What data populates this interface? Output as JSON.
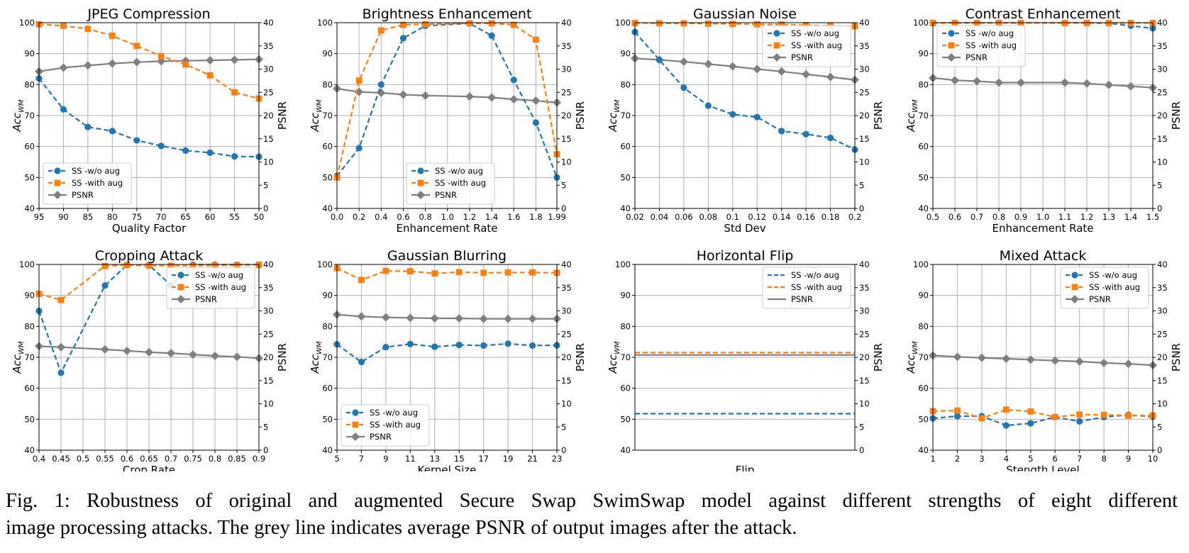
{
  "caption": {
    "line1": "Fig. 1: Robustness of original and augmented Secure Swap SwimSwap model against different strengths of eight different",
    "line2": "image processing attacks. The grey line indicates average PSNR of output images after the attack."
  },
  "legend": {
    "without_aug": "SS -w/o aug",
    "with_aug": "SS -with aug",
    "psnr": "PSNR"
  },
  "axis_labels": {
    "left_main": "Acc",
    "left_sub": "WM",
    "right": "PSNR"
  },
  "colors": {
    "without_aug": "#1f77b4",
    "with_aug": "#ff7f0e",
    "psnr": "#7f7f7f"
  },
  "chart_data": [
    {
      "type": "line",
      "title": "JPEG Compression",
      "xlabel": "Quality Factor",
      "x": [
        95,
        90,
        85,
        80,
        75,
        70,
        65,
        60,
        55,
        50
      ],
      "x_ticks": [
        "95",
        "90",
        "85",
        "80",
        "75",
        "70",
        "65",
        "60",
        "55",
        "50"
      ],
      "x_reversed": true,
      "ylim_left": [
        40,
        100
      ],
      "ylim_right": [
        0,
        40
      ],
      "y_ticks_left": [
        "40",
        "50",
        "60",
        "70",
        "80",
        "90",
        "100"
      ],
      "y_ticks_right": [
        "0",
        "5",
        "10",
        "15",
        "20",
        "25",
        "30",
        "35",
        "40"
      ],
      "legend_position": "lower-left",
      "grid": true,
      "series": [
        {
          "key": "without_aug",
          "marker": "circle",
          "dashed": true,
          "axis": "left",
          "values": [
            82,
            72,
            66.3,
            65,
            62,
            60.2,
            58.7,
            58,
            56.8,
            56.7
          ]
        },
        {
          "key": "with_aug",
          "marker": "square",
          "dashed": true,
          "axis": "left",
          "values": [
            99.5,
            99,
            98,
            95.8,
            92.5,
            89.2,
            86.5,
            83,
            77.5,
            75.5
          ]
        },
        {
          "key": "psnr",
          "marker": "diamond",
          "dashed": false,
          "axis": "right",
          "values": [
            29.5,
            30.3,
            30.8,
            31.2,
            31.5,
            31.7,
            31.8,
            31.9,
            32,
            32.1
          ]
        }
      ]
    },
    {
      "type": "line",
      "title": "Brightness Enhancement",
      "xlabel": "Enhancement Rate",
      "x": [
        0,
        0.2,
        0.4,
        0.6,
        0.8,
        1.2,
        1.4,
        1.6,
        1.8,
        1.99
      ],
      "x_ticks": [
        "0.0",
        "0.2",
        "0.4",
        "0.6",
        "0.8",
        "1.0",
        "1.2",
        "1.4",
        "1.6",
        "1.8",
        "1.99"
      ],
      "x_tick_values": [
        0,
        0.2,
        0.4,
        0.6,
        0.8,
        1.0,
        1.2,
        1.4,
        1.6,
        1.8,
        1.99
      ],
      "x_reversed": false,
      "ylim_left": [
        40,
        100
      ],
      "ylim_right": [
        0,
        40
      ],
      "y_ticks_left": [
        "40",
        "50",
        "60",
        "70",
        "80",
        "90",
        "100"
      ],
      "y_ticks_right": [
        "0",
        "5",
        "10",
        "15",
        "20",
        "25",
        "30",
        "35",
        "40"
      ],
      "legend_position": "lower-center",
      "grid": true,
      "series": [
        {
          "key": "without_aug",
          "marker": "circle",
          "dashed": true,
          "axis": "left",
          "values": [
            50.5,
            59.5,
            80,
            95,
            99,
            99.8,
            95.8,
            81.5,
            67.7,
            50
          ]
        },
        {
          "key": "with_aug",
          "marker": "square",
          "dashed": true,
          "axis": "left",
          "values": [
            50,
            81.3,
            97.5,
            99.3,
            99.5,
            99.8,
            99.8,
            99.3,
            94.5,
            57.5
          ]
        },
        {
          "key": "psnr",
          "marker": "diamond",
          "dashed": false,
          "axis": "right",
          "values": [
            25.8,
            25.1,
            24.9,
            24.5,
            24.3,
            24.1,
            23.9,
            23.5,
            23.2,
            22.8
          ]
        }
      ]
    },
    {
      "type": "line",
      "title": "Gaussian Noise",
      "xlabel": "Std Dev",
      "x": [
        0.02,
        0.04,
        0.06,
        0.08,
        0.1,
        0.12,
        0.14,
        0.16,
        0.18,
        0.2
      ],
      "x_ticks": [
        "0.02",
        "0.04",
        "0.06",
        "0.08",
        "0.1",
        "0.12",
        "0.14",
        "0.16",
        "0.18",
        "0.2"
      ],
      "x_reversed": false,
      "ylim_left": [
        40,
        100
      ],
      "ylim_right": [
        0,
        40
      ],
      "y_ticks_left": [
        "40",
        "50",
        "60",
        "70",
        "80",
        "90",
        "100"
      ],
      "y_ticks_right": [
        "0",
        "5",
        "10",
        "15",
        "20",
        "25",
        "30",
        "35",
        "40"
      ],
      "legend_position": "upper-right",
      "grid": true,
      "series": [
        {
          "key": "without_aug",
          "marker": "circle",
          "dashed": true,
          "axis": "left",
          "values": [
            97,
            88,
            79,
            73.2,
            70.4,
            69.5,
            65,
            64,
            62.8,
            59
          ]
        },
        {
          "key": "with_aug",
          "marker": "square",
          "dashed": true,
          "axis": "left",
          "values": [
            99.9,
            99.8,
            99.8,
            99.7,
            99.6,
            99.5,
            99.4,
            99.2,
            99,
            98.9
          ]
        },
        {
          "key": "psnr",
          "marker": "diamond",
          "dashed": false,
          "axis": "right",
          "values": [
            32.3,
            32,
            31.6,
            31.1,
            30.6,
            30,
            29.5,
            28.9,
            28.3,
            27.7
          ]
        }
      ]
    },
    {
      "type": "line",
      "title": "Contrast Enhancement",
      "xlabel": "Enhancement Rate",
      "x": [
        0.5,
        0.6,
        0.7,
        0.8,
        0.9,
        1.1,
        1.2,
        1.3,
        1.4,
        1.5
      ],
      "x_ticks": [
        "0.5",
        "0.6",
        "0.7",
        "0.8",
        "0.9",
        "1.0",
        "1.1",
        "1.2",
        "1.3",
        "1.4",
        "1.5"
      ],
      "x_tick_values": [
        0.5,
        0.6,
        0.7,
        0.8,
        0.9,
        1.0,
        1.1,
        1.2,
        1.3,
        1.4,
        1.5
      ],
      "x_reversed": false,
      "ylim_left": [
        40,
        100
      ],
      "ylim_right": [
        0,
        40
      ],
      "y_ticks_left": [
        "40",
        "50",
        "60",
        "70",
        "80",
        "90",
        "100"
      ],
      "y_ticks_right": [
        "0",
        "5",
        "10",
        "15",
        "20",
        "25",
        "30",
        "35",
        "40"
      ],
      "legend_position": "upper-left",
      "grid": true,
      "series": [
        {
          "key": "without_aug",
          "marker": "circle",
          "dashed": true,
          "axis": "left",
          "values": [
            99.9,
            99.9,
            99.9,
            99.9,
            99.9,
            99.9,
            99.9,
            99.8,
            99,
            98.2
          ]
        },
        {
          "key": "with_aug",
          "marker": "square",
          "dashed": true,
          "axis": "left",
          "values": [
            99.9,
            99.9,
            99.9,
            99.9,
            99.9,
            99.9,
            99.9,
            99.9,
            99.9,
            99.9
          ]
        },
        {
          "key": "psnr",
          "marker": "diamond",
          "dashed": false,
          "axis": "right",
          "values": [
            28.1,
            27.6,
            27.4,
            27.1,
            27.1,
            27.1,
            26.9,
            26.6,
            26.3,
            26
          ]
        }
      ]
    },
    {
      "type": "line",
      "title": "Cropping Attack",
      "xlabel": "Crop Rate",
      "x": [
        0.4,
        0.45,
        0.55,
        0.6,
        0.65,
        0.7,
        0.75,
        0.8,
        0.85,
        0.9
      ],
      "x_ticks": [
        "0.4",
        "0.45",
        "0.5",
        "0.55",
        "0.6",
        "0.65",
        "0.7",
        "0.75",
        "0.8",
        "0.85",
        "0.9"
      ],
      "x_tick_values": [
        0.4,
        0.45,
        0.5,
        0.55,
        0.6,
        0.65,
        0.7,
        0.75,
        0.8,
        0.85,
        0.9
      ],
      "x_reversed": false,
      "ylim_left": [
        40,
        100
      ],
      "ylim_right": [
        0,
        40
      ],
      "y_ticks_left": [
        "40",
        "50",
        "60",
        "70",
        "80",
        "90",
        "100"
      ],
      "y_ticks_right": [
        "0",
        "5",
        "10",
        "15",
        "20",
        "25",
        "30",
        "35",
        "40"
      ],
      "legend_position": "upper-right",
      "grid": true,
      "series": [
        {
          "key": "without_aug",
          "marker": "circle",
          "dashed": true,
          "axis": "left",
          "values": [
            85,
            65,
            93.2,
            99.8,
            99.8,
            93.3,
            99.9,
            99.9,
            99.9,
            99.9
          ]
        },
        {
          "key": "with_aug",
          "marker": "square",
          "dashed": true,
          "axis": "left",
          "values": [
            90.5,
            88.5,
            99.5,
            99.8,
            99.6,
            99.6,
            99.6,
            99.7,
            99.8,
            99.9
          ]
        },
        {
          "key": "psnr",
          "marker": "diamond",
          "dashed": false,
          "axis": "right",
          "values": [
            22.4,
            22.2,
            21.7,
            21.4,
            21.1,
            20.9,
            20.6,
            20.3,
            20.1,
            19.8
          ]
        }
      ]
    },
    {
      "type": "line",
      "title": "Gaussian Blurring",
      "xlabel": "Kernel Size",
      "x": [
        5,
        7,
        9,
        11,
        13,
        15,
        17,
        19,
        21,
        23
      ],
      "x_ticks": [
        "5",
        "7",
        "9",
        "11",
        "13",
        "15",
        "17",
        "19",
        "21",
        "23"
      ],
      "x_reversed": false,
      "ylim_left": [
        40,
        100
      ],
      "ylim_right": [
        0,
        40
      ],
      "y_ticks_left": [
        "40",
        "50",
        "60",
        "70",
        "80",
        "90",
        "100"
      ],
      "y_ticks_right": [
        "0",
        "5",
        "10",
        "15",
        "20",
        "25",
        "30",
        "35",
        "40"
      ],
      "legend_position": "lower-left",
      "grid": true,
      "series": [
        {
          "key": "without_aug",
          "marker": "circle",
          "dashed": true,
          "axis": "left",
          "values": [
            74.2,
            68.5,
            73.3,
            74.3,
            73.4,
            74,
            73.8,
            74.4,
            73.8,
            73.9
          ]
        },
        {
          "key": "with_aug",
          "marker": "square",
          "dashed": true,
          "axis": "left",
          "values": [
            98.8,
            95,
            97.9,
            97.8,
            97.1,
            97.5,
            97.3,
            97.4,
            97.4,
            97.3
          ]
        },
        {
          "key": "psnr",
          "marker": "diamond",
          "dashed": false,
          "axis": "right",
          "values": [
            29.2,
            28.8,
            28.6,
            28.5,
            28.4,
            28.4,
            28.3,
            28.3,
            28.3,
            28.3
          ]
        }
      ]
    },
    {
      "type": "line",
      "title": "Horizontal Flip",
      "xlabel": "Flip",
      "x": [
        0,
        1
      ],
      "x_ticks": [],
      "x_reversed": false,
      "ylim_left": [
        40,
        100
      ],
      "ylim_right": [
        0,
        40
      ],
      "y_ticks_left": [
        "40",
        "50",
        "60",
        "70",
        "80",
        "90",
        "100"
      ],
      "y_ticks_right": [
        "0",
        "5",
        "10",
        "15",
        "20",
        "25",
        "30",
        "35",
        "40"
      ],
      "legend_position": "upper-right",
      "grid": true,
      "series": [
        {
          "key": "without_aug",
          "marker": "none",
          "dashed": true,
          "axis": "left",
          "values": [
            51.8,
            51.8
          ]
        },
        {
          "key": "with_aug",
          "marker": "none",
          "dashed": true,
          "axis": "left",
          "values": [
            71.5,
            71.5
          ]
        },
        {
          "key": "psnr",
          "marker": "none",
          "dashed": false,
          "axis": "right",
          "values": [
            20.5,
            20.5
          ]
        }
      ]
    },
    {
      "type": "line",
      "title": "Mixed Attack",
      "xlabel": "Stength Level",
      "x": [
        1,
        2,
        3,
        4,
        5,
        6,
        7,
        8,
        9,
        10
      ],
      "x_ticks": [
        "1",
        "2",
        "3",
        "4",
        "5",
        "6",
        "7",
        "8",
        "9",
        "10"
      ],
      "x_reversed": false,
      "ylim_left": [
        40,
        100
      ],
      "ylim_right": [
        0,
        40
      ],
      "y_ticks_left": [
        "40",
        "50",
        "60",
        "70",
        "80",
        "90",
        "100"
      ],
      "y_ticks_right": [
        "0",
        "5",
        "10",
        "15",
        "20",
        "25",
        "30",
        "35",
        "40"
      ],
      "legend_position": "upper-right",
      "grid": true,
      "series": [
        {
          "key": "without_aug",
          "marker": "circle",
          "dashed": true,
          "axis": "left",
          "values": [
            50.3,
            51,
            51,
            48,
            48.7,
            50.7,
            49.3,
            50.7,
            51.4,
            50.8
          ]
        },
        {
          "key": "with_aug",
          "marker": "square",
          "dashed": true,
          "axis": "left",
          "values": [
            52.6,
            52.8,
            50.3,
            53.1,
            52.5,
            50.7,
            51.5,
            51.4,
            51.2,
            51.2
          ]
        },
        {
          "key": "psnr",
          "marker": "diamond",
          "dashed": false,
          "axis": "right",
          "values": [
            20.4,
            20.1,
            19.9,
            19.7,
            19.5,
            19.3,
            19.1,
            18.8,
            18.6,
            18.3
          ]
        }
      ]
    }
  ]
}
